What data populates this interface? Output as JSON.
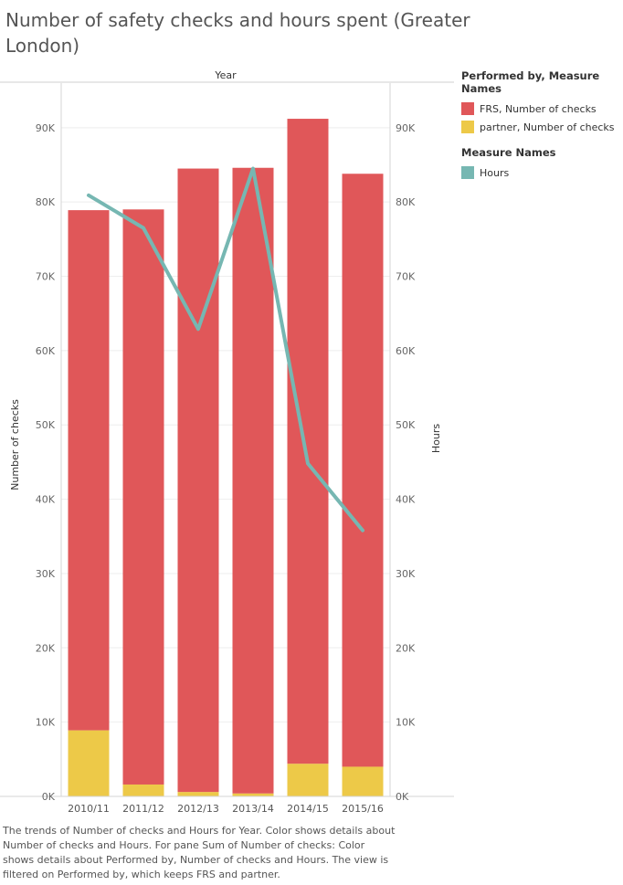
{
  "title": "Number of safety checks and hours spent (Greater London)",
  "legend": {
    "color_title": "Performed by, Measure Names",
    "color_items": [
      {
        "label": "FRS, Number of checks",
        "color": "#e05759"
      },
      {
        "label": "partner, Number of checks",
        "color": "#edc948"
      }
    ],
    "measure_title": "Measure Names",
    "measure_items": [
      {
        "label": "Hours",
        "color": "#76b7b2"
      }
    ]
  },
  "caption": "The trends of Number of checks and Hours for Year.  Color shows details about Number of checks and Hours.  For pane Sum of Number of checks: Color shows details about Performed by, Number of checks and Hours. The view is filtered on Performed by, which keeps FRS and partner.",
  "chart_data": {
    "type": "bar",
    "x_header": "Year",
    "categories": [
      "2010/11",
      "2011/12",
      "2012/13",
      "2013/14",
      "2014/15",
      "2015/16"
    ],
    "stacked": true,
    "series": [
      {
        "name": "partner, Number of checks",
        "axis": "left",
        "color": "#edc948",
        "values": [
          8900,
          1600,
          600,
          400,
          4400,
          4000
        ]
      },
      {
        "name": "FRS, Number of checks",
        "axis": "left",
        "color": "#e05759",
        "values": [
          70000,
          77400,
          83900,
          84200,
          86800,
          79800
        ]
      },
      {
        "name": "Hours",
        "axis": "right",
        "type": "line",
        "color": "#76b7b2",
        "values": [
          80900,
          76500,
          62900,
          84500,
          44800,
          35800
        ]
      }
    ],
    "ylabel": "Number of checks",
    "y2label": "Hours",
    "ylim": [
      0,
      96000
    ],
    "y2lim": [
      0,
      96000
    ],
    "yticks": [
      0,
      10000,
      20000,
      30000,
      40000,
      50000,
      60000,
      70000,
      80000,
      90000
    ],
    "ytick_labels": [
      "0K",
      "10K",
      "20K",
      "30K",
      "40K",
      "50K",
      "60K",
      "70K",
      "80K",
      "90K"
    ],
    "y2tick_labels": [
      "0K",
      "10K",
      "20K",
      "30K",
      "40K",
      "50K",
      "60K",
      "70K",
      "80K",
      "90K"
    ],
    "grid": true
  }
}
